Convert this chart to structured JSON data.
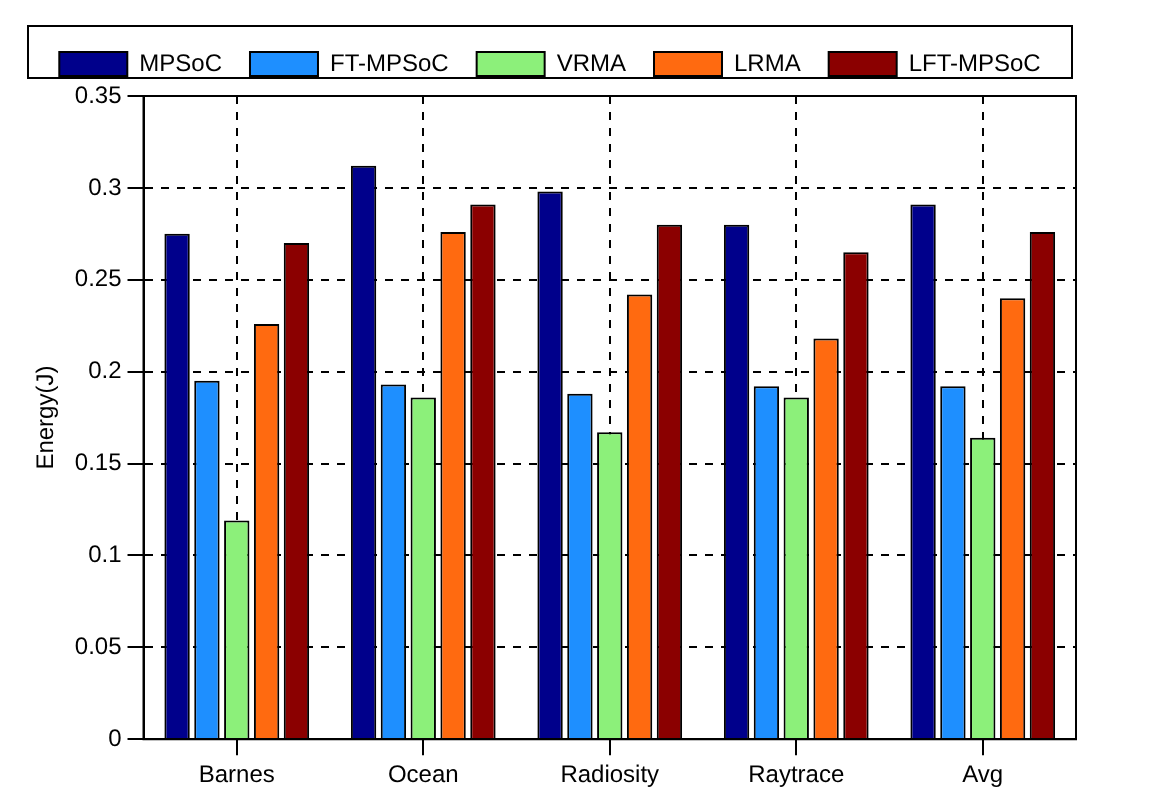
{
  "chart_data": {
    "type": "bar",
    "ylabel": "Energy(J)",
    "categories": [
      "Barnes",
      "Ocean",
      "Radiosity",
      "Raytrace",
      "Avg"
    ],
    "series": [
      {
        "name": "MPSoC",
        "color": "#00008b",
        "values": [
          0.275,
          0.312,
          0.298,
          0.28,
          0.291
        ]
      },
      {
        "name": "FT-MPSoC",
        "color": "#1e8fff",
        "values": [
          0.195,
          0.193,
          0.188,
          0.192,
          0.192
        ]
      },
      {
        "name": "VRMA",
        "color": "#8cf07a",
        "values": [
          0.119,
          0.186,
          0.167,
          0.186,
          0.164
        ]
      },
      {
        "name": "LRMA",
        "color": "#ff6a10",
        "values": [
          0.226,
          0.276,
          0.242,
          0.218,
          0.24
        ]
      },
      {
        "name": "LFT-MPSoC",
        "color": "#8b0000",
        "values": [
          0.27,
          0.291,
          0.28,
          0.265,
          0.276
        ]
      }
    ],
    "ylim": [
      0,
      0.35
    ],
    "yticks": [
      0,
      0.05,
      0.1,
      0.15,
      0.2,
      0.25,
      0.3,
      0.35
    ],
    "grid": true,
    "legend": "top"
  }
}
